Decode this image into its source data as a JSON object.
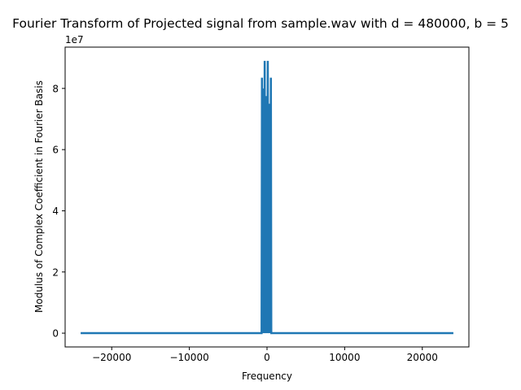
{
  "chart_data": {
    "type": "line",
    "title": "Fourier Transform of Projected signal from sample.wav with d = 480000, b = 5",
    "xlabel": "Frequency",
    "ylabel": "Modulus of Complex Coefficient in Fourier Basis",
    "y_scale_label": "1e7",
    "xlim": [
      -26000,
      26000
    ],
    "ylim": [
      -4500000,
      93500000
    ],
    "x_ticks": [
      -20000,
      -10000,
      0,
      10000,
      20000
    ],
    "x_tick_labels": [
      "−20000",
      "−10000",
      "0",
      "10000",
      "20000"
    ],
    "y_ticks": [
      0,
      20000000,
      40000000,
      60000000,
      80000000
    ],
    "y_tick_labels": [
      "0",
      "2",
      "4",
      "6",
      "8"
    ],
    "grid": false,
    "series": [
      {
        "color": "#1f77b4",
        "x": [
          -24000,
          -700,
          -650,
          -600,
          -500,
          -400,
          -300,
          -200,
          -100,
          0,
          100,
          200,
          300,
          400,
          500,
          550,
          600,
          24000
        ],
        "y": [
          0,
          0,
          83500000,
          0,
          80000000,
          0,
          89000000,
          0,
          77500000,
          0,
          89000000,
          0,
          75000000,
          0,
          83500000,
          0,
          0,
          0
        ]
      }
    ]
  }
}
